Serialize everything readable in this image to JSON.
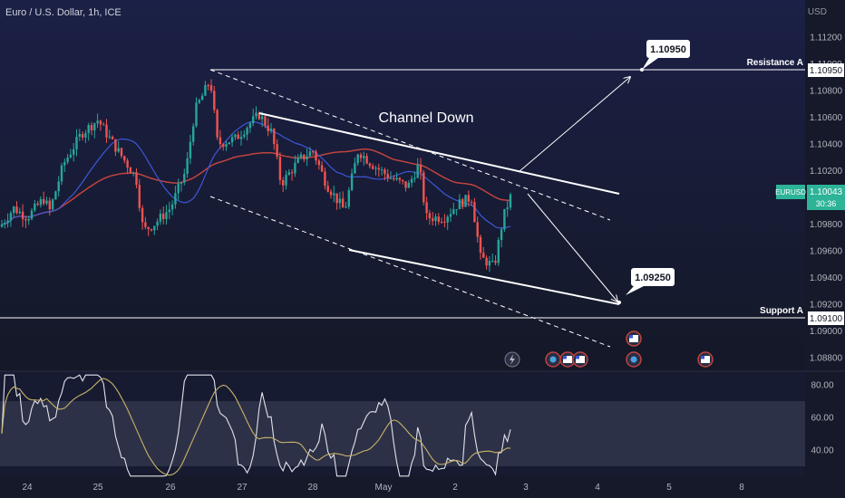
{
  "header": {
    "symbol_line": "Euro / U.S. Dollar, 1h, ICE",
    "currency": "USD"
  },
  "colors": {
    "background_top": "#1a1f3c",
    "background_bottom": "#131722",
    "candle_up": "#26a69a",
    "candle_down": "#ef5350",
    "ma_fast": "#3d57d8",
    "ma_slow": "#c0433f",
    "rsi_line": "#e0e3eb",
    "rsi_ma": "#c9b26a",
    "channel": "#ffffff",
    "badge": "#2db398"
  },
  "price_axis": {
    "ticks": [
      "1.11200",
      "1.11000",
      "1.10800",
      "1.10600",
      "1.10400",
      "1.10200",
      "1.09800",
      "1.09600",
      "1.09400",
      "1.09200",
      "1.09000",
      "1.08800"
    ]
  },
  "rsi_axis": {
    "ticks": [
      "80.00",
      "60.00",
      "40.00"
    ]
  },
  "time_axis": {
    "ticks": [
      "24",
      "25",
      "26",
      "27",
      "28",
      "May",
      "2",
      "3",
      "4",
      "5",
      "8"
    ]
  },
  "annotations": {
    "channel_label": "Channel Down",
    "target_high": "1.10950",
    "target_low": "1.09250",
    "resistance_label": "Resistance A",
    "resistance_value": "1.10950",
    "support_label": "Support A",
    "support_value": "1.09100",
    "symbol_badge": "EURUSD",
    "last_price": "1.10043",
    "countdown": "30:36"
  },
  "chart_data": {
    "type": "candlestick",
    "title": "Euro / U.S. Dollar, 1h, ICE",
    "instrument": "EURUSD",
    "timeframe": "1h",
    "ylim": [
      1.0878,
      1.1132
    ],
    "x_ticks": [
      "24",
      "25",
      "26",
      "27",
      "28",
      "May",
      "2",
      "3",
      "4",
      "5",
      "8"
    ],
    "close_path": [
      [
        "24",
        1.0978
      ],
      [
        "24",
        1.0992
      ],
      [
        "24",
        1.0985
      ],
      [
        "24",
        1.0999
      ],
      [
        "24",
        1.099
      ],
      [
        "25",
        1.1025
      ],
      [
        "25",
        1.1048
      ],
      [
        "25",
        1.1058
      ],
      [
        "25",
        1.1045
      ],
      [
        "25",
        1.103
      ],
      [
        "25",
        1.1015
      ],
      [
        "26",
        1.0975
      ],
      [
        "26",
        1.098
      ],
      [
        "26",
        1.0992
      ],
      [
        "26",
        1.102
      ],
      [
        "26",
        1.1065
      ],
      [
        "26",
        1.1088
      ],
      [
        "26",
        1.104
      ],
      [
        "27",
        1.1044
      ],
      [
        "27",
        1.1055
      ],
      [
        "27",
        1.1062
      ],
      [
        "27",
        1.1048
      ],
      [
        "27",
        1.101
      ],
      [
        "28",
        1.1028
      ],
      [
        "28",
        1.1035
      ],
      [
        "28",
        1.101
      ],
      [
        "28",
        1.099
      ],
      [
        "28",
        1.1035
      ],
      [
        "May",
        1.1025
      ],
      [
        "May",
        1.1015
      ],
      [
        "May",
        1.1008
      ],
      [
        "May",
        1.1025
      ],
      [
        "May",
        1.0985
      ],
      [
        "2",
        1.0985
      ],
      [
        "2",
        1.0995
      ],
      [
        "2",
        1.1
      ],
      [
        "2",
        1.0955
      ],
      [
        "2",
        1.0948
      ],
      [
        "2",
        1.0985
      ],
      [
        "2",
        1.1004
      ]
    ],
    "indicators": {
      "moving_averages": [
        {
          "color": "#3d57d8"
        },
        {
          "color": "#c0433f"
        }
      ],
      "rsi": {
        "levels": [
          70,
          30
        ],
        "range": [
          25,
          85
        ],
        "ticks": [
          80,
          60,
          40
        ]
      }
    },
    "levels": [
      {
        "label": "Resistance A",
        "value": 1.1095
      },
      {
        "label": "Support A",
        "value": 1.091
      }
    ],
    "targets": [
      1.1095,
      1.0925
    ],
    "last_price": 1.10043
  }
}
